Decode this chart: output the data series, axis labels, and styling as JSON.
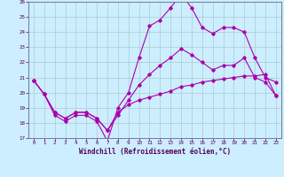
{
  "xlabel": "Windchill (Refroidissement éolien,°C)",
  "xlim": [
    -0.5,
    23.5
  ],
  "ylim": [
    17,
    26
  ],
  "xticks": [
    0,
    1,
    2,
    3,
    4,
    5,
    6,
    7,
    8,
    9,
    10,
    11,
    12,
    13,
    14,
    15,
    16,
    17,
    18,
    19,
    20,
    21,
    22,
    23
  ],
  "yticks": [
    17,
    18,
    19,
    20,
    21,
    22,
    23,
    24,
    25,
    26
  ],
  "bg_color": "#cceeff",
  "line_color": "#aa00aa",
  "grid_color": "#aacccc",
  "line1_y": [
    20.8,
    19.9,
    18.5,
    18.1,
    18.5,
    18.5,
    18.1,
    16.8,
    19.0,
    20.0,
    22.3,
    24.4,
    24.8,
    25.6,
    26.5,
    25.6,
    24.3,
    23.9,
    24.3,
    24.3,
    24.0,
    22.3,
    21.0,
    20.7
  ],
  "line2_y": [
    20.8,
    19.9,
    18.7,
    18.3,
    18.7,
    18.7,
    18.3,
    17.5,
    18.5,
    19.5,
    20.5,
    21.2,
    21.8,
    22.3,
    22.9,
    22.5,
    22.0,
    21.5,
    21.8,
    21.8,
    22.3,
    21.0,
    20.7,
    19.8
  ],
  "line3_y": [
    20.8,
    19.9,
    18.7,
    18.3,
    18.7,
    18.7,
    18.3,
    17.5,
    18.7,
    19.2,
    19.5,
    19.7,
    19.9,
    20.1,
    20.4,
    20.5,
    20.7,
    20.8,
    20.9,
    21.0,
    21.1,
    21.1,
    21.2,
    19.8
  ]
}
